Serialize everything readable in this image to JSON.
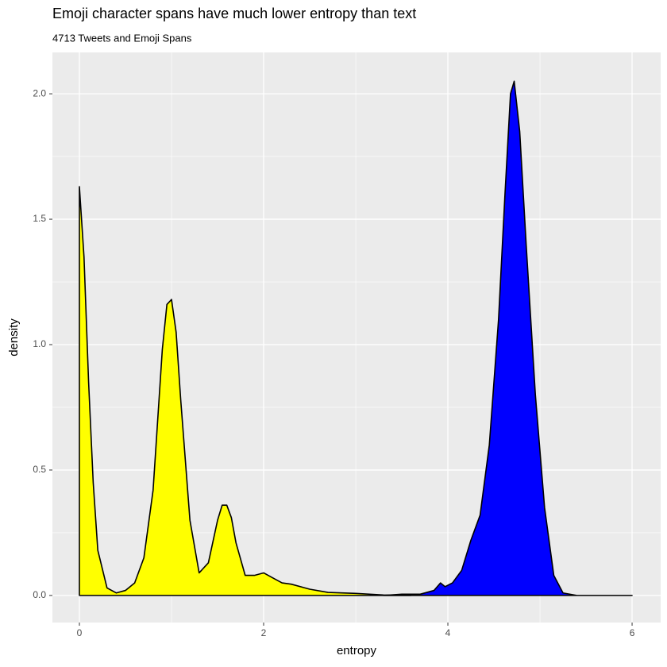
{
  "chart_data": {
    "type": "density",
    "title": "Emoji character spans have much lower entropy than text",
    "subtitle": "4713 Tweets and Emoji Spans",
    "x_label": "entropy",
    "y_label": "density",
    "xlim": [
      -0.293,
      6.31
    ],
    "ylim": [
      -0.108,
      2.165
    ],
    "xticks": [
      0,
      2,
      4,
      6
    ],
    "yticks": [
      {
        "value": 0,
        "label": "0.0"
      },
      0.5,
      {
        "value": 1,
        "label": "1.0"
      },
      1.5,
      {
        "value": 2,
        "label": "2.0"
      }
    ],
    "grid": true,
    "series": [
      {
        "color": "#0000ff",
        "x": [
          3.3,
          3.5,
          3.7,
          3.85,
          3.92,
          3.97,
          4.05,
          4.15,
          4.25,
          4.35,
          4.45,
          4.55,
          4.62,
          4.68,
          4.72,
          4.78,
          4.85,
          4.95,
          5.05,
          5.15,
          5.25,
          5.4,
          6
        ],
        "values": [
          0,
          0.005,
          0.005,
          0.02,
          0.05,
          0.035,
          0.05,
          0.1,
          0.22,
          0.32,
          0.6,
          1.1,
          1.6,
          2.0,
          2.05,
          1.85,
          1.4,
          0.8,
          0.35,
          0.08,
          0.01,
          0,
          0
        ]
      },
      {
        "color": "#ffff00",
        "x": [
          0,
          0.05,
          0.1,
          0.15,
          0.2,
          0.3,
          0.4,
          0.5,
          0.6,
          0.7,
          0.8,
          0.85,
          0.9,
          0.95,
          1.0,
          1.05,
          1.1,
          1.2,
          1.3,
          1.4,
          1.5,
          1.55,
          1.6,
          1.65,
          1.7,
          1.8,
          1.9,
          2.0,
          2.1,
          2.2,
          2.3,
          2.5,
          2.7,
          3.0,
          3.3,
          3.6
        ],
        "values": [
          1.63,
          1.35,
          0.85,
          0.45,
          0.18,
          0.03,
          0.01,
          0.02,
          0.05,
          0.15,
          0.42,
          0.7,
          0.98,
          1.16,
          1.18,
          1.05,
          0.78,
          0.3,
          0.09,
          0.13,
          0.3,
          0.36,
          0.36,
          0.31,
          0.21,
          0.08,
          0.08,
          0.09,
          0.07,
          0.05,
          0.045,
          0.025,
          0.012,
          0.008,
          0.002,
          0
        ]
      }
    ]
  }
}
